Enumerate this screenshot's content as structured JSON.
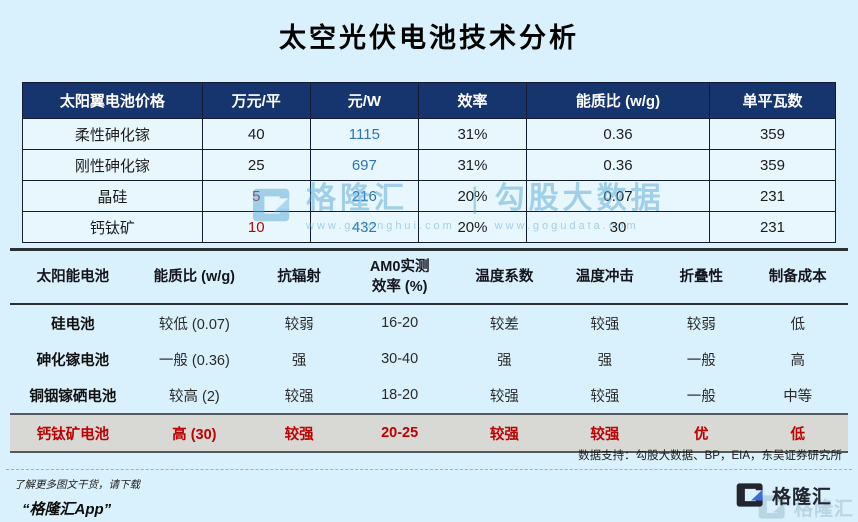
{
  "page": {
    "title": "太空光伏电池技术分析",
    "data_support": "数据支持：勾股大数据、BP，EIA，东吴证券研究所",
    "footer_left_line1": "了解更多图文干货，请下载",
    "footer_left_line2": "“格隆汇App”",
    "brand_name": "格隆汇"
  },
  "watermark": {
    "brand": "格隆汇",
    "brand_url": "www.gelonghui.com",
    "divider": "|",
    "source": "勾股大数据",
    "source_url": "www.gogudata.com"
  },
  "price_table": {
    "headers": [
      "太阳翼电池价格",
      "万元/平",
      "元/W",
      "效率",
      "能质比 (w/g)",
      "单平瓦数"
    ],
    "rows": [
      {
        "cells": [
          "柔性砷化镓",
          "40",
          "1115",
          "31%",
          "0.36",
          "359"
        ],
        "styles": [
          "",
          "",
          "blue",
          "",
          "",
          ""
        ]
      },
      {
        "cells": [
          "刚性砷化镓",
          "25",
          "697",
          "31%",
          "0.36",
          "359"
        ],
        "styles": [
          "",
          "",
          "blue",
          "",
          "",
          ""
        ]
      },
      {
        "cells": [
          "晶硅",
          "5",
          "216",
          "20%",
          "0.07",
          "231"
        ],
        "styles": [
          "",
          "red",
          "blue",
          "",
          "",
          ""
        ]
      },
      {
        "cells": [
          "钙钛矿",
          "10",
          "432",
          "20%",
          "30",
          "231"
        ],
        "styles": [
          "",
          "red",
          "blue",
          "",
          "",
          ""
        ]
      }
    ]
  },
  "compare_table": {
    "headers": [
      "太阳能电池",
      "能质比 (w/g)",
      "抗辐射",
      "AM0实测\n效率 (%)",
      "温度系数",
      "温度冲击",
      "折叠性",
      "制备成本"
    ],
    "rows": [
      {
        "cells": [
          "硅电池",
          "较低 (0.07)",
          "较弱",
          "16-20",
          "较差",
          "较强",
          "较弱",
          "低"
        ],
        "highlight": false
      },
      {
        "cells": [
          "砷化镓电池",
          "一般 (0.36)",
          "强",
          "30-40",
          "强",
          "强",
          "一般",
          "高"
        ],
        "highlight": false
      },
      {
        "cells": [
          "铜铟镓硒电池",
          "较高 (2)",
          "较强",
          "18-20",
          "较强",
          "较强",
          "一般",
          "中等"
        ],
        "highlight": false
      },
      {
        "cells": [
          "钙钛矿电池",
          "高 (30)",
          "较强",
          "20-25",
          "较强",
          "较强",
          "优",
          "低"
        ],
        "highlight": true
      }
    ]
  },
  "colors": {
    "page_bg": "#d9f1fc",
    "header_navy": "#16356f",
    "accent_red": "#c00000",
    "accent_blue": "#2e74b5",
    "highlight_gray": "#d8d8d4"
  }
}
